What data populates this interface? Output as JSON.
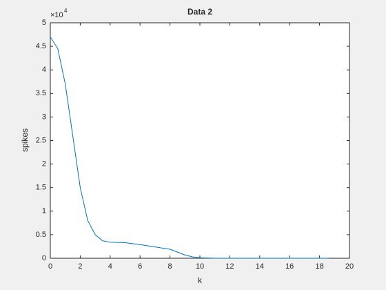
{
  "chart_data": {
    "type": "line",
    "title": "Data 2",
    "xlabel": "k",
    "ylabel": "spikes",
    "y_exponent_base": "×10",
    "y_exponent_power": "4",
    "x": [
      0,
      0.5,
      1,
      1.5,
      2,
      2.5,
      3,
      3.5,
      4,
      5,
      6,
      7,
      8,
      8.5,
      9,
      9.5,
      10,
      11,
      12,
      14,
      16,
      18,
      18.6
    ],
    "series": [
      {
        "color": "#0072bd",
        "values": [
          4.7,
          4.45,
          3.7,
          2.6,
          1.5,
          0.8,
          0.5,
          0.37,
          0.34,
          0.33,
          0.29,
          0.24,
          0.19,
          0.13,
          0.07,
          0.03,
          0.01,
          0,
          0,
          0,
          0,
          0,
          0
        ]
      }
    ],
    "xlim": [
      0,
      20
    ],
    "xticks": [
      0,
      2,
      4,
      6,
      8,
      10,
      12,
      14,
      16,
      18,
      20
    ],
    "ylim": [
      0,
      5
    ],
    "yticks": [
      0,
      0.5,
      1,
      1.5,
      2,
      2.5,
      3,
      3.5,
      4,
      4.5,
      5
    ],
    "grid": false
  }
}
